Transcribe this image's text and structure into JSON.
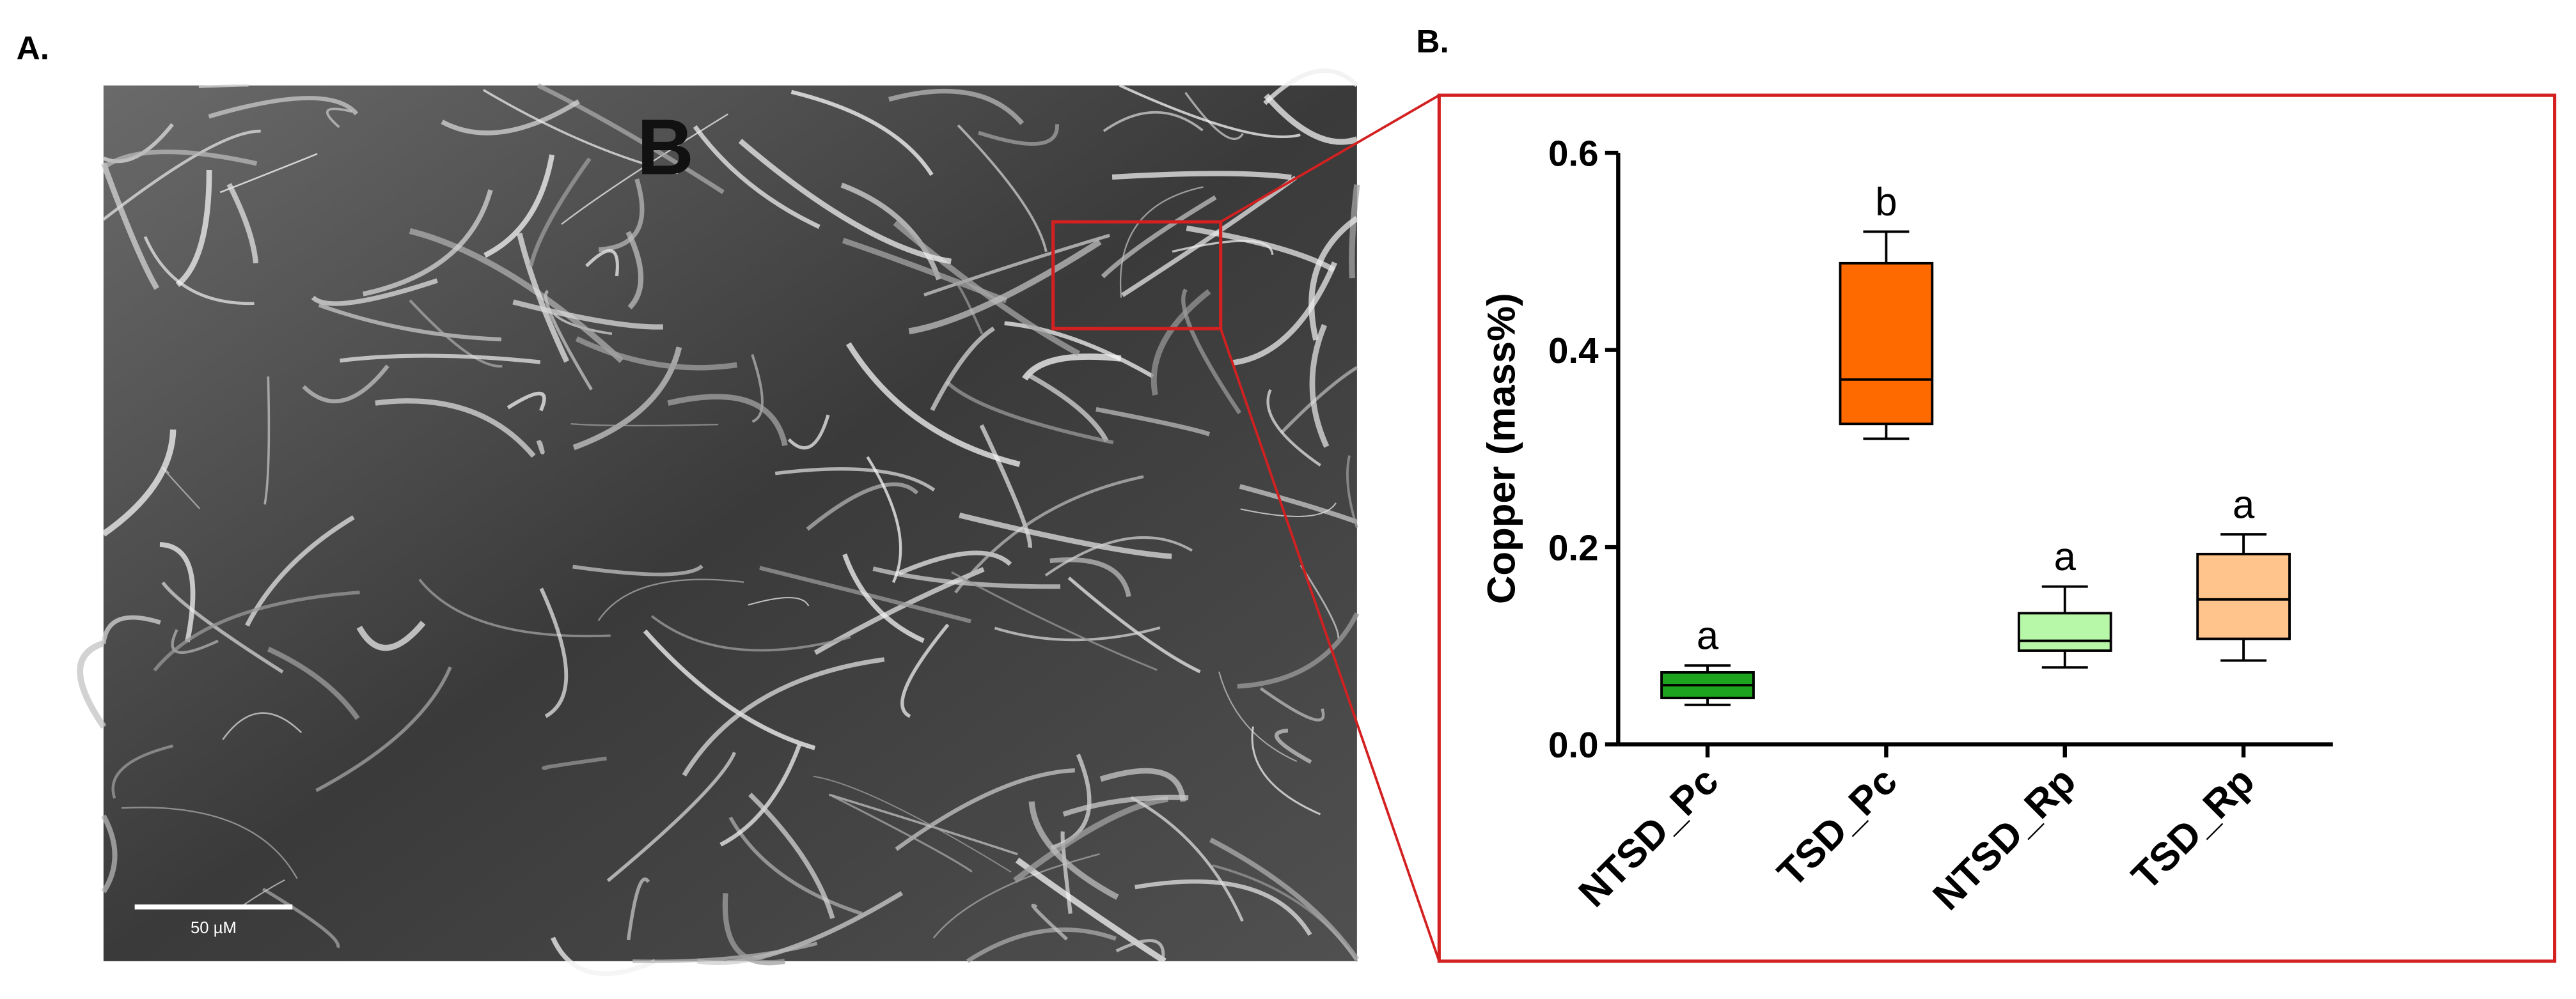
{
  "panel_labels": {
    "left": "A.",
    "right": "B."
  },
  "image_labels": {
    "overlay": "B",
    "scale_bar": "50 µM"
  },
  "chart_data": {
    "type": "box",
    "y_label": "Copper (mass%)",
    "categories": [
      "NTSD_Pc",
      "TSD_Pc",
      "NTSD_Rp",
      "TSD_Rp"
    ],
    "boxes": [
      {
        "min": 0.04,
        "q1": 0.047,
        "median": 0.06,
        "q3": 0.073,
        "max": 0.08,
        "color": "#1ea31e"
      },
      {
        "min": 0.31,
        "q1": 0.325,
        "median": 0.37,
        "q3": 0.488,
        "max": 0.52,
        "color": "#ff6a00"
      },
      {
        "min": 0.078,
        "q1": 0.095,
        "median": 0.105,
        "q3": 0.133,
        "max": 0.16,
        "color": "#b7f7a8"
      },
      {
        "min": 0.085,
        "q1": 0.107,
        "median": 0.147,
        "q3": 0.193,
        "max": 0.213,
        "color": "#ffc48c"
      }
    ],
    "annotations": [
      "a",
      "b",
      "a",
      "a"
    ],
    "ylim": [
      0,
      0.6
    ],
    "yticks": [
      {
        "value": 0,
        "label": "0.0"
      },
      0.2,
      0.4,
      0.6
    ]
  }
}
